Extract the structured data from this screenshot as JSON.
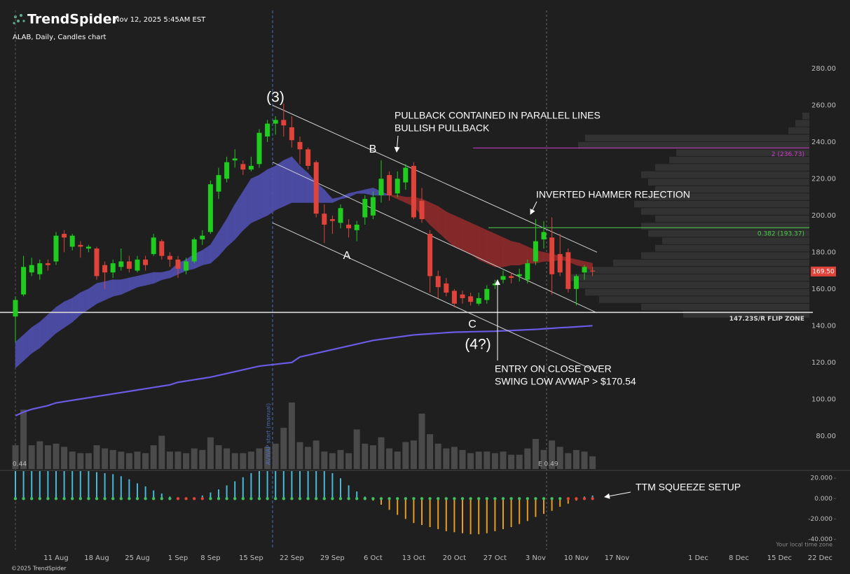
{
  "header": {
    "brand": "TrendSpider",
    "timestamp": "Nov 12, 2025 5:45AM EST"
  },
  "footer": {
    "copyright": "©2025 TrendSpider",
    "timezone": "Your local time zone"
  },
  "chart_data": {
    "type": "candlestick",
    "title": "ALAB, Daily, Candles chart",
    "categories": [
      null,
      null,
      null,
      null,
      null,
      "11 Aug",
      null,
      null,
      null,
      null,
      "18 Aug",
      null,
      null,
      null,
      null,
      "25 Aug",
      null,
      null,
      null,
      null,
      "1 Sep",
      null,
      null,
      null,
      "8 Sep",
      null,
      null,
      null,
      null,
      "15 Sep",
      null,
      null,
      null,
      null,
      "22 Sep",
      null,
      null,
      null,
      null,
      "29 Sep",
      null,
      null,
      null,
      null,
      "6 Oct",
      null,
      null,
      null,
      null,
      "13 Oct",
      null,
      null,
      null,
      null,
      "20 Oct",
      null,
      null,
      null,
      null,
      "27 Oct",
      null,
      null,
      null,
      null,
      "3 Nov",
      null,
      null,
      null,
      null,
      "10 Nov",
      null,
      null,
      null,
      null,
      "17 Nov",
      null,
      null,
      null,
      null,
      null,
      null,
      null,
      null,
      null,
      "1 Dec",
      null,
      null,
      null,
      null,
      "8 Dec",
      null,
      null,
      null,
      null,
      "15 Dec",
      null,
      null,
      null,
      null,
      "22 Dec"
    ],
    "open": [
      145,
      157,
      169,
      168,
      174,
      175,
      190,
      183,
      184,
      182,
      182,
      173,
      169,
      172,
      175,
      170,
      176,
      179,
      186,
      178,
      176,
      170,
      175,
      187,
      191,
      213,
      220,
      230,
      228,
      225,
      228,
      243,
      250,
      252,
      248,
      240,
      236,
      229,
      201,
      198,
      196,
      195,
      192,
      199,
      200,
      211,
      222,
      212,
      218,
      227,
      208,
      190,
      167,
      163,
      159,
      157,
      156,
      152,
      154,
      162,
      165,
      167,
      167,
      165,
      175,
      187,
      188,
      179,
      180,
      160,
      169,
      170,
      null,
      null,
      null,
      null,
      null,
      null,
      null,
      null,
      null,
      null,
      null,
      null,
      null,
      null,
      null,
      null,
      null,
      null,
      null,
      null,
      null,
      null,
      null,
      null,
      null,
      null,
      null,
      null
    ],
    "high": [
      156,
      178,
      177,
      176,
      176,
      191,
      192,
      190,
      186,
      184,
      183,
      175,
      176,
      182,
      178,
      178,
      178,
      190,
      187,
      180,
      178,
      177,
      188,
      192,
      219,
      226,
      232,
      236,
      230,
      232,
      247,
      252,
      254,
      261,
      254,
      243,
      237,
      230,
      206,
      200,
      206,
      198,
      197,
      211,
      213,
      230,
      224,
      224,
      228,
      229,
      215,
      192,
      170,
      166,
      160,
      159,
      158,
      158,
      162,
      165,
      170,
      169,
      171,
      176,
      198,
      197,
      199,
      190,
      182,
      168,
      173,
      172,
      null,
      null,
      null,
      null,
      null,
      null,
      null,
      null,
      null,
      null,
      null,
      null,
      null,
      null,
      null,
      null,
      null,
      null,
      null,
      null,
      null,
      null,
      null,
      null,
      null,
      null,
      null,
      null
    ],
    "low": [
      131,
      156,
      167,
      165,
      170,
      173,
      180,
      181,
      177,
      180,
      165,
      160,
      166,
      170,
      169,
      169,
      170,
      178,
      176,
      172,
      166,
      168,
      174,
      184,
      190,
      209,
      218,
      226,
      222,
      224,
      226,
      240,
      244,
      243,
      237,
      228,
      225,
      199,
      185,
      190,
      193,
      188,
      186,
      195,
      198,
      207,
      208,
      210,
      214,
      198,
      196,
      158,
      155,
      156,
      150,
      152,
      151,
      151,
      152,
      160,
      163,
      163,
      164,
      163,
      173,
      182,
      157,
      167,
      158,
      151,
      165,
      167,
      null,
      null,
      null,
      null,
      null,
      null,
      null,
      null,
      null,
      null,
      null,
      null,
      null,
      null,
      null,
      null,
      null,
      null,
      null,
      null,
      null,
      null,
      null,
      null,
      null,
      null,
      null,
      null
    ],
    "close": [
      154,
      172,
      173,
      174,
      173,
      189,
      188,
      189,
      183,
      183,
      167,
      169,
      174,
      175,
      171,
      176,
      173,
      188,
      178,
      176,
      171,
      175,
      187,
      189,
      217,
      222,
      229,
      231,
      225,
      227,
      245,
      250,
      252,
      249,
      241,
      236,
      227,
      201,
      195,
      197,
      204,
      193,
      195,
      209,
      210,
      220,
      211,
      220,
      226,
      199,
      198,
      167,
      161,
      158,
      152,
      155,
      153,
      155,
      160,
      163,
      167,
      166,
      168,
      174,
      186,
      191,
      168,
      169,
      160,
      167,
      172,
      169.5,
      null,
      null,
      null,
      null,
      null,
      null,
      null,
      null,
      null,
      null,
      null,
      null,
      null,
      null,
      null,
      null,
      null,
      null,
      null,
      null,
      null,
      null,
      null,
      null,
      null,
      null,
      null,
      null
    ],
    "up_color": "#1fcc1f",
    "down_color": "#e0433a",
    "ema_fast": [
      131,
      135,
      139,
      142,
      146,
      150,
      153,
      155,
      158,
      160,
      163,
      164,
      165,
      165,
      166,
      167,
      168,
      169,
      169,
      170,
      174,
      176,
      179,
      181,
      184,
      191,
      198,
      206,
      213,
      220,
      222,
      225,
      227,
      230,
      232,
      227,
      223,
      218,
      214,
      209,
      210,
      212,
      213,
      214,
      215,
      213,
      211,
      209,
      207,
      205,
      200,
      195,
      191,
      187,
      183,
      181,
      179,
      176,
      174,
      172,
      172,
      173,
      173,
      174,
      174,
      175,
      175,
      176,
      175,
      173,
      172,
      170,
      null,
      null,
      null,
      null,
      null,
      null,
      null,
      null,
      null,
      null,
      null,
      null,
      null,
      null,
      null,
      null,
      null,
      null,
      null,
      null,
      null,
      null,
      null,
      null,
      null,
      null,
      null,
      null
    ],
    "ema_slow": [
      117,
      121,
      125,
      128,
      132,
      136,
      139,
      142,
      146,
      149,
      152,
      154,
      156,
      157,
      159,
      161,
      162,
      163,
      165,
      166,
      168,
      170,
      171,
      173,
      174,
      178,
      183,
      187,
      192,
      196,
      198,
      200,
      203,
      205,
      207,
      207,
      207,
      207,
      207,
      207,
      209,
      210,
      212,
      212,
      211,
      211,
      211,
      211,
      210,
      210,
      209,
      207,
      205,
      202,
      200,
      198,
      196,
      194,
      192,
      190,
      188,
      186,
      185,
      183,
      181,
      180,
      179,
      178,
      177,
      176,
      175,
      174,
      null,
      null,
      null,
      null,
      null,
      null,
      null,
      null,
      null,
      null,
      null,
      null,
      null,
      null,
      null,
      null,
      null,
      null,
      null,
      null,
      null,
      null,
      null,
      null,
      null,
      null,
      null,
      null
    ],
    "cloud_up_color": "#4f4fb0",
    "cloud_down_color": "#8e2b2b",
    "avwap": [
      91,
      93,
      94.5,
      95.5,
      96.5,
      98,
      98.7,
      99.4,
      100.1,
      100.8,
      101.5,
      102.2,
      102.9,
      103.6,
      104.3,
      105,
      105.7,
      106.4,
      107.1,
      107.8,
      109.2,
      109.9,
      110.6,
      111.3,
      112,
      113,
      114,
      115,
      116,
      117,
      118,
      118.5,
      119,
      119.5,
      120,
      123,
      124,
      125,
      126,
      127,
      128,
      129,
      130,
      131,
      132,
      132.6,
      133.2,
      133.8,
      134.4,
      135,
      135.3,
      135.6,
      135.9,
      136.2,
      136.5,
      136.6,
      136.7,
      136.8,
      136.9,
      137,
      137.2,
      137.4,
      137.6,
      137.8,
      138,
      138.3,
      138.6,
      138.9,
      139.1,
      139.4,
      139.7,
      140,
      null,
      null,
      null,
      null,
      null,
      null,
      null,
      null,
      null,
      null,
      null,
      null,
      null,
      null,
      null,
      null,
      null,
      null,
      null,
      null,
      null,
      null,
      null,
      null,
      null,
      null,
      null,
      null
    ],
    "avwap_color": "#6b5be6",
    "volume": [
      3.0,
      7.5,
      3.0,
      3.5,
      3.0,
      3.2,
      2.8,
      2.2,
      2.0,
      2.0,
      3.0,
      2.6,
      2.4,
      2.2,
      2.0,
      2.2,
      2.0,
      3.0,
      4.2,
      2.2,
      2.2,
      2.0,
      2.6,
      2.4,
      4.0,
      3.0,
      2.6,
      2.0,
      2.0,
      2.2,
      2.6,
      2.8,
      3.2,
      5.2,
      8.4,
      3.4,
      2.8,
      3.6,
      2.2,
      2.0,
      2.4,
      2.0,
      5.0,
      3.2,
      3.0,
      4.0,
      2.6,
      2.2,
      3.4,
      3.6,
      7.0,
      4.4,
      3.2,
      2.6,
      2.8,
      2.4,
      2.0,
      2.2,
      2.2,
      2.0,
      2.2,
      1.8,
      1.8,
      2.6,
      3.8,
      2.4,
      3.6,
      2.8,
      2.0,
      2.4,
      2.2,
      1.6,
      null,
      null,
      null,
      null,
      null,
      null,
      null,
      null,
      null,
      null,
      null,
      null,
      null,
      null,
      null,
      null,
      null,
      null,
      null,
      null,
      null,
      null,
      null,
      null,
      null,
      null,
      null,
      null
    ],
    "volume_labels": [
      "0.44",
      "E 0.49"
    ],
    "volume_profile": {
      "prices": [
        146,
        150,
        154,
        158,
        162,
        166,
        170,
        174,
        178,
        182,
        186,
        190,
        194,
        198,
        202,
        206,
        210,
        214,
        218,
        222,
        226,
        230,
        234,
        238,
        242,
        246,
        250,
        254
      ],
      "values": [
        180,
        240,
        300,
        320,
        330,
        340,
        320,
        280,
        240,
        220,
        210,
        230,
        240,
        220,
        240,
        250,
        230,
        220,
        230,
        240,
        220,
        200,
        190,
        330,
        320,
        30,
        20,
        10
      ]
    },
    "ylim": [
      62,
      291
    ],
    "yticks": [
      {
        "value": 80,
        "label": "80.00"
      },
      {
        "value": 100,
        "label": "100.00"
      },
      {
        "value": 120,
        "label": "120.00"
      },
      {
        "value": 140,
        "label": "140.00"
      },
      {
        "value": 160,
        "label": "160.00"
      },
      {
        "value": 180,
        "label": "180.00"
      },
      {
        "value": 200,
        "label": "200.00"
      },
      {
        "value": 220,
        "label": "220.00"
      },
      {
        "value": 240,
        "label": "240.00"
      },
      {
        "value": 260,
        "label": "260.00"
      },
      {
        "value": 280,
        "label": "280.00"
      }
    ],
    "grid": false,
    "last_price": {
      "value": 169.5,
      "label": "169.50"
    },
    "levels": [
      {
        "value": 236.73,
        "label": "2 (236.73)",
        "color": "#d03cd0"
      },
      {
        "value": 193.37,
        "label": "0.382 (193.37)",
        "color": "#49d049"
      },
      {
        "value": 147.23,
        "label": "147.23S/R FLIP ZONE",
        "color": "#d8d8d8"
      }
    ],
    "channel": [
      {
        "start": 260,
        "end": 180
      },
      {
        "start": 229,
        "end": 147
      },
      {
        "start": 196,
        "end": 115
      }
    ],
    "annotations": {
      "wave_3": "(3)",
      "wave_b": "B",
      "wave_a": "A",
      "wave_c": "C",
      "wave_4": "(4?)",
      "pullback_1": "PULLBACK CONTAINED IN PARALLEL LINES",
      "pullback_2": "BULLISH PULLBACK",
      "hammer": "INVERTED HAMMER REJECTION",
      "entry_1": "ENTRY ON CLOSE OVER",
      "entry_2": "SWING LOW AVWAP > $170.54",
      "squeeze": "TTM SQUEEZE SETUP",
      "avwap_start": "AVWAP start (manual)"
    },
    "squeeze": {
      "values": [
        27,
        27,
        27,
        27,
        27,
        27,
        27,
        27,
        27,
        27,
        26,
        25,
        24,
        22,
        19,
        15,
        12,
        8,
        5,
        2,
        -1,
        -1,
        1,
        3,
        6,
        9,
        13,
        17,
        21,
        25,
        27,
        27,
        27,
        27,
        27,
        27,
        27,
        27,
        27,
        25,
        20,
        13,
        7,
        2,
        -2,
        -6,
        -11,
        -16,
        -20,
        -24,
        -26,
        -28,
        -30,
        -32,
        -33,
        -34,
        -35,
        -35,
        -34,
        -32,
        -30,
        -28,
        -25,
        -22,
        -18,
        -15,
        -12,
        -8,
        -5,
        -2,
        2,
        3,
        null,
        null,
        null,
        null,
        null,
        null,
        null,
        null,
        null,
        null,
        null,
        null,
        null,
        null,
        null,
        null,
        null,
        null,
        null,
        null,
        null,
        null,
        null,
        null,
        null,
        null,
        null,
        null
      ],
      "up_color": "#46b9d9",
      "down_color": "#e89d22",
      "dot_color": "#3fbf5f",
      "red_dot_color": "#e0433a",
      "red_dots": [
        20,
        21,
        22,
        23,
        68,
        69,
        70,
        71
      ],
      "ylim": [
        -50,
        27
      ],
      "yticks": [
        {
          "value": 20,
          "label": "20.000"
        },
        {
          "value": 0,
          "label": "0.000"
        },
        {
          "value": -20,
          "label": "-20.000"
        },
        {
          "value": -40,
          "label": "-40.000"
        }
      ]
    }
  }
}
